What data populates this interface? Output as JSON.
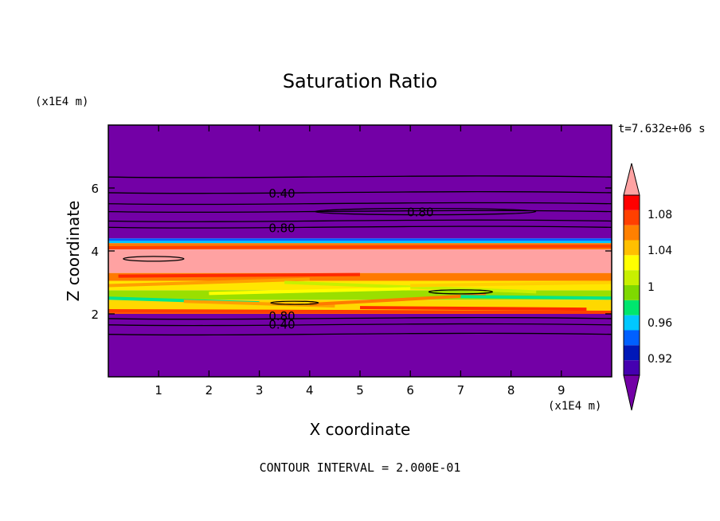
{
  "title": "Saturation Ratio",
  "y_unit_label": "(x1E4 m)",
  "x_unit_label": "(x1E4 m)",
  "time_label": "t=7.632e+06 s",
  "footer": "CONTOUR INTERVAL = 2.000E-01",
  "chart_data": {
    "type": "heatmap",
    "title": "Saturation Ratio",
    "xlabel": "X coordinate",
    "ylabel": "Z coordinate",
    "xlim": [
      0,
      10
    ],
    "ylim": [
      0,
      8
    ],
    "x_ticks": [
      "1",
      "2",
      "3",
      "4",
      "5",
      "6",
      "7",
      "8",
      "9"
    ],
    "y_ticks": [
      "2",
      "4",
      "6"
    ],
    "bands": [
      {
        "z0": 0.0,
        "z1": 2.0,
        "color": "#7300a6"
      },
      {
        "z0": 2.0,
        "z1": 2.1,
        "color": "#ff5a00"
      },
      {
        "z0": 2.1,
        "z1": 2.45,
        "color": "#ffd800"
      },
      {
        "z0": 2.45,
        "z1": 2.75,
        "color": "#9adf00"
      },
      {
        "z0": 2.75,
        "z1": 3.05,
        "color": "#ffe600"
      },
      {
        "z0": 3.05,
        "z1": 3.3,
        "color": "#ff7a00"
      },
      {
        "z0": 3.3,
        "z1": 4.05,
        "color": "#ffa2a2"
      },
      {
        "z0": 4.05,
        "z1": 4.25,
        "color": "#ff7a00"
      },
      {
        "z0": 4.25,
        "z1": 4.32,
        "color": "#00c8ff"
      },
      {
        "z0": 4.32,
        "z1": 4.4,
        "color": "#0060ff"
      },
      {
        "z0": 4.4,
        "z1": 8.0,
        "color": "#7300a6"
      }
    ],
    "contour_lines": [
      {
        "level": "",
        "z": 1.35
      },
      {
        "level": "0.40",
        "z": 1.65
      },
      {
        "level": "0.80",
        "z": 1.85
      },
      {
        "level": "",
        "z": 4.95
      },
      {
        "level": "0.80",
        "z": 4.75
      },
      {
        "level": "0.40",
        "z": 5.85
      },
      {
        "level": "",
        "z": 5.5
      },
      {
        "level": "",
        "z": 6.35
      },
      {
        "level": "0.80",
        "z": 5.25
      }
    ],
    "contour_labels": [
      {
        "text": "0.40",
        "x": 3.45,
        "z": 5.85
      },
      {
        "text": "0.80",
        "x": 3.45,
        "z": 4.75
      },
      {
        "text": "0.80",
        "x": 6.2,
        "z": 5.25
      },
      {
        "text": "0.80",
        "x": 3.45,
        "z": 1.95
      },
      {
        "text": "0.40",
        "x": 3.45,
        "z": 1.68
      }
    ],
    "colorbar": {
      "levels": [
        "0.92",
        "0.96",
        "1",
        "1.04",
        "1.08"
      ],
      "colors": [
        "#7300a6",
        "#4500b0",
        "#0018b8",
        "#0060ff",
        "#00c8ff",
        "#00e66e",
        "#7fd900",
        "#c8f000",
        "#ffff00",
        "#ffc000",
        "#ff8000",
        "#ff4000",
        "#ff0000",
        "#ffa2a2"
      ]
    }
  }
}
